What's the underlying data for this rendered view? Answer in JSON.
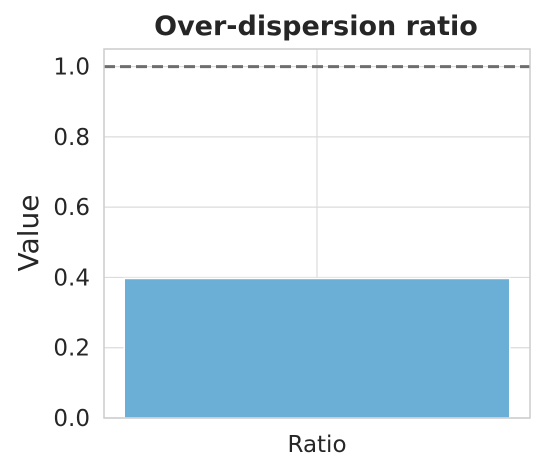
{
  "chart_data": {
    "type": "bar",
    "title": "Over-dispersion ratio",
    "xlabel": "",
    "ylabel": "Value",
    "categories": [
      "Ratio"
    ],
    "values": [
      0.397
    ],
    "ylim": [
      0,
      1.05
    ],
    "yticks": [
      "0.0",
      "0.2",
      "0.4",
      "0.6",
      "0.8",
      "1.0"
    ],
    "ytick_values": [
      0,
      0.2,
      0.4,
      0.6,
      0.8,
      1.0
    ],
    "reference_line": {
      "y": 1.0,
      "style": "dashed"
    },
    "grid": true,
    "colors": {
      "bar": "#6baed6",
      "reference_line": "#6e6e6e",
      "grid": "#dcdcdc",
      "axes": "#cccccc",
      "text": "#262626"
    }
  }
}
